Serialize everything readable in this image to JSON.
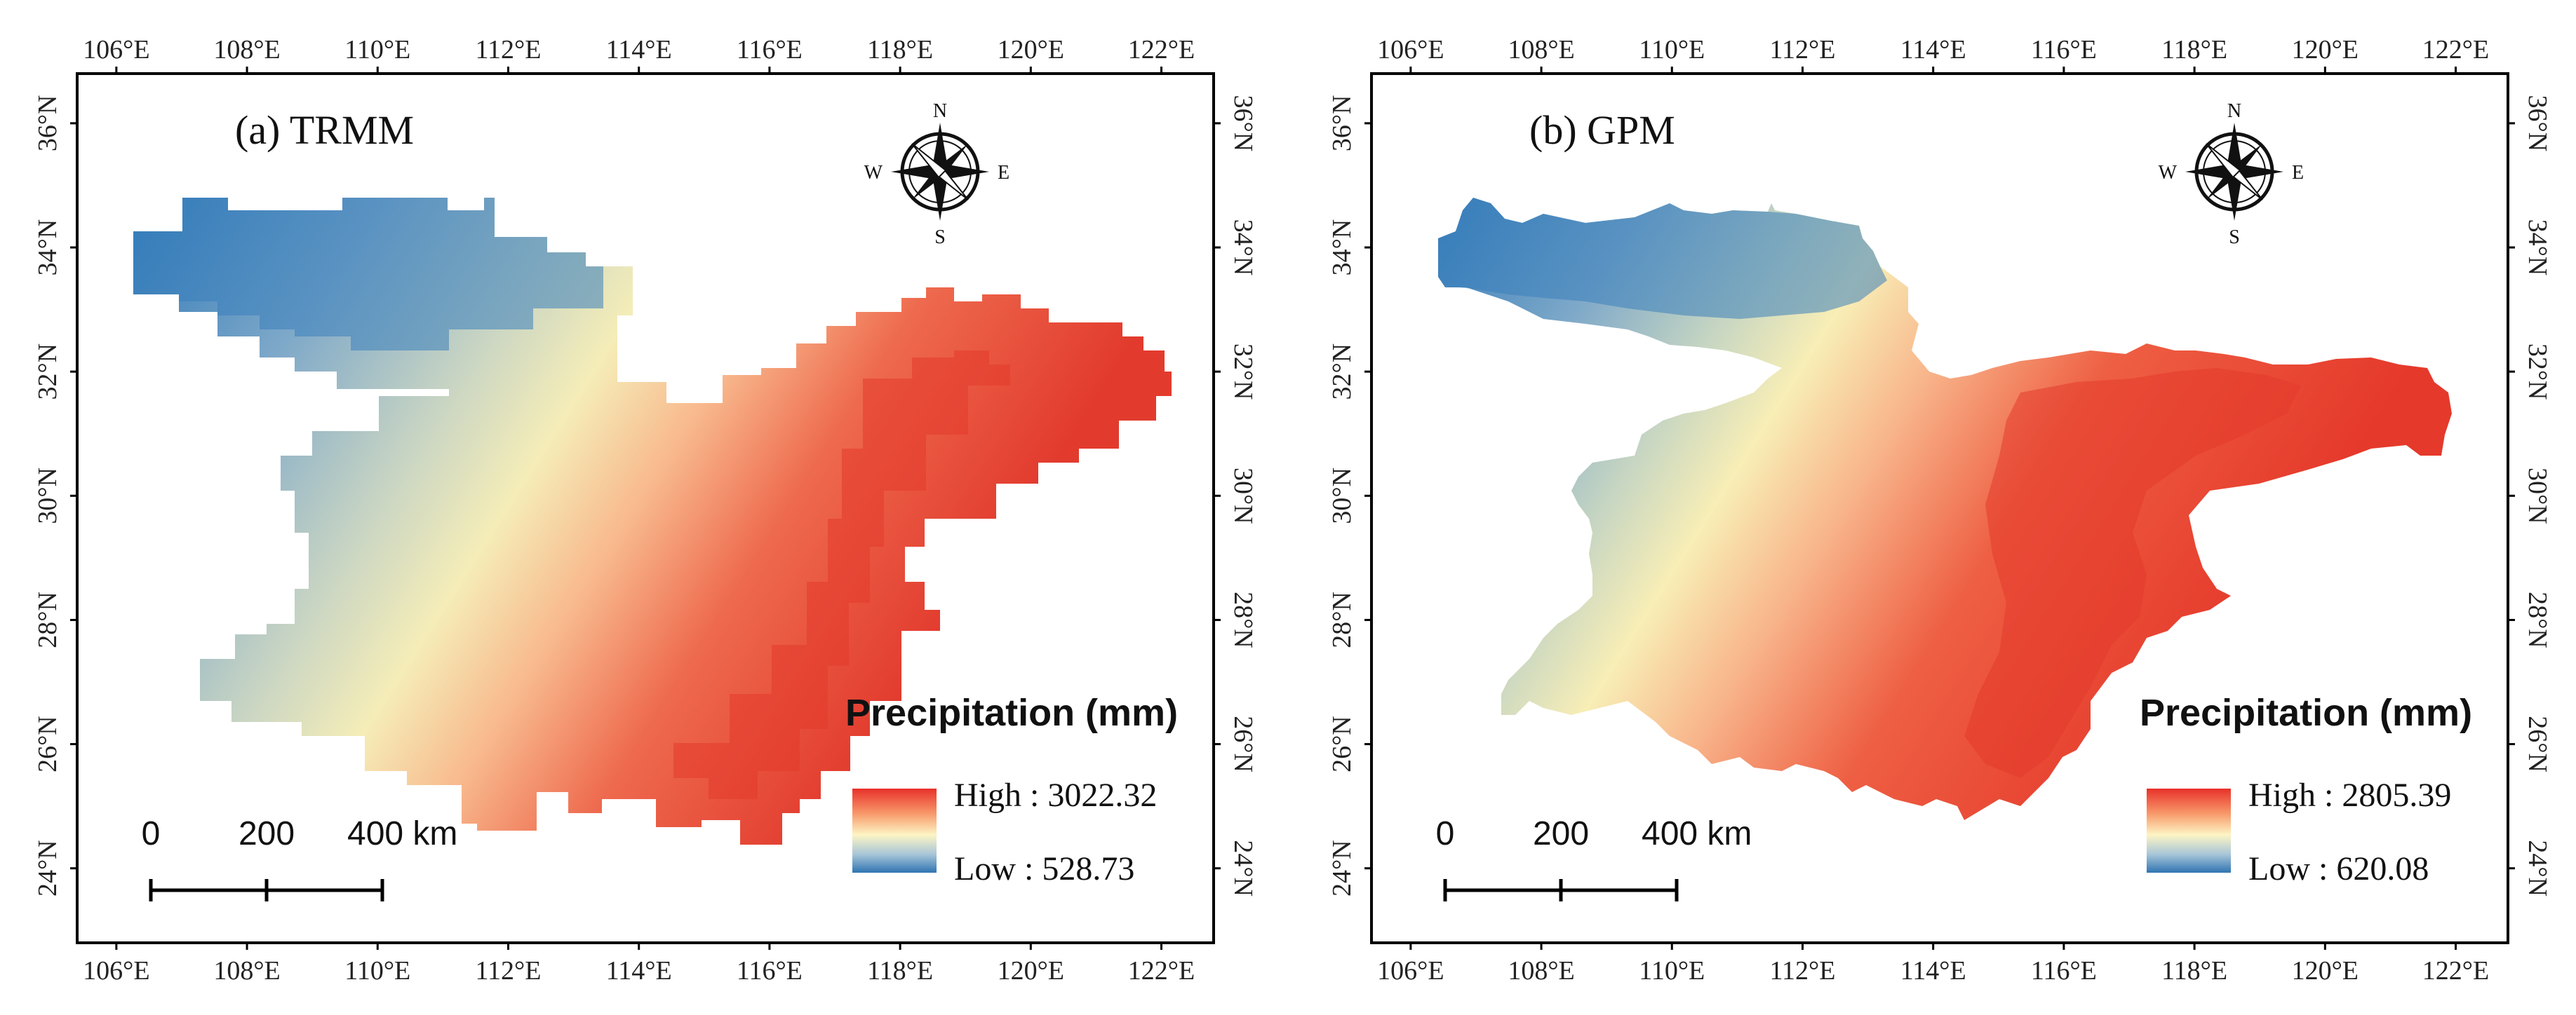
{
  "panels": [
    {
      "id": "trmm",
      "title": "(a) TRMM",
      "legend": {
        "title": "Precipitation (mm)",
        "high": "High : 3022.32",
        "low": "Low : 528.73",
        "high_value": 3022.32,
        "low_value": 528.73
      },
      "scale": {
        "labels": [
          "0",
          "200",
          "400 km"
        ]
      },
      "compass": {
        "n": "N",
        "s": "S",
        "e": "E",
        "w": "W"
      }
    },
    {
      "id": "gpm",
      "title": "(b) GPM",
      "legend": {
        "title": "Precipitation (mm)",
        "high": "High : 2805.39",
        "low": "Low : 620.08",
        "high_value": 2805.39,
        "low_value": 620.08
      },
      "scale": {
        "labels": [
          "0",
          "200",
          "400 km"
        ]
      },
      "compass": {
        "n": "N",
        "s": "S",
        "e": "E",
        "w": "W"
      }
    }
  ],
  "axes": {
    "lon_ticks": [
      "106°E",
      "108°E",
      "110°E",
      "112°E",
      "114°E",
      "116°E",
      "118°E",
      "120°E",
      "122°E"
    ],
    "lat_ticks": [
      "36°N",
      "34°N",
      "32°N",
      "30°N",
      "28°N",
      "26°N",
      "24°N"
    ],
    "lon_values": [
      106,
      108,
      110,
      112,
      114,
      116,
      118,
      120,
      122
    ],
    "lat_values": [
      36,
      34,
      32,
      30,
      28,
      26,
      24
    ],
    "lon_range": [
      105.4,
      122.8
    ],
    "lat_range": [
      22.8,
      36.8
    ]
  },
  "colors": {
    "ramp": [
      "#2c7bb6",
      "#abd9e9",
      "#ffffbf",
      "#fdae61",
      "#d7191c"
    ],
    "frame": "#000000"
  }
}
